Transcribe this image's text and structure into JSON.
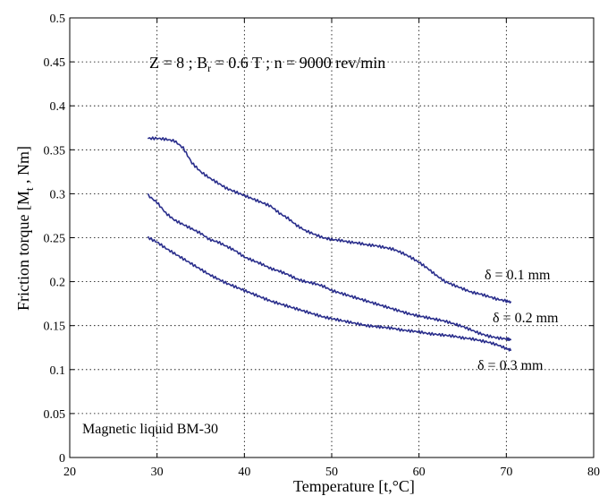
{
  "chart_data": {
    "type": "line",
    "xlabel": "Temperature [t,°C]",
    "ylabel": "Friction torque  [M",
    "ylabel_sub": "t",
    "ylabel_tail": " , Nm]",
    "xlim": [
      20,
      80
    ],
    "ylim": [
      0,
      0.5
    ],
    "x_ticks": [
      20,
      30,
      40,
      50,
      60,
      70,
      80
    ],
    "y_ticks": [
      0,
      0.05,
      0.1,
      0.15,
      0.2,
      0.25,
      0.3,
      0.35,
      0.4,
      0.45,
      0.5
    ],
    "x_tick_labels": [
      "20",
      "30",
      "40",
      "50",
      "60",
      "70",
      "80"
    ],
    "y_tick_labels": [
      "0",
      "0.05",
      "0.1",
      "0.15",
      "0.2",
      "0.25",
      "0.3",
      "0.35",
      "0.4",
      "0.45",
      "0.5"
    ],
    "grid": true,
    "annotation_main": {
      "part1": "Z = 8  ;  B",
      "sub": "r",
      "part2": " = 0.6 T  ;  n = 9000 rev/min"
    },
    "annotation_bottom": "Magnetic liquid BM-30",
    "line_color": "#2a2e8c",
    "series": [
      {
        "name": "δ = 0.1 mm",
        "x": [
          29,
          30,
          31,
          32,
          33,
          34,
          35,
          36,
          37,
          38,
          39,
          40,
          41,
          42,
          43,
          44,
          45,
          46,
          47,
          48,
          49,
          50,
          51,
          52,
          53,
          54,
          55,
          56,
          57,
          58,
          59,
          60,
          61,
          62,
          63,
          64,
          65,
          66,
          67,
          68,
          69,
          70,
          70.5
        ],
        "y": [
          0.363,
          0.363,
          0.362,
          0.36,
          0.352,
          0.335,
          0.325,
          0.318,
          0.312,
          0.306,
          0.302,
          0.298,
          0.294,
          0.29,
          0.286,
          0.278,
          0.272,
          0.264,
          0.258,
          0.254,
          0.25,
          0.248,
          0.247,
          0.245,
          0.244,
          0.242,
          0.241,
          0.239,
          0.237,
          0.233,
          0.228,
          0.222,
          0.215,
          0.207,
          0.2,
          0.196,
          0.192,
          0.188,
          0.186,
          0.183,
          0.18,
          0.178,
          0.177
        ]
      },
      {
        "name": "δ = 0.2 mm",
        "x": [
          29,
          30,
          31,
          32,
          33,
          34,
          35,
          36,
          37,
          38,
          39,
          40,
          41,
          42,
          43,
          44,
          45,
          46,
          47,
          48,
          49,
          50,
          51,
          52,
          53,
          54,
          55,
          56,
          57,
          58,
          59,
          60,
          61,
          62,
          63,
          64,
          65,
          66,
          67,
          68,
          69,
          70,
          70.5
        ],
        "y": [
          0.298,
          0.29,
          0.278,
          0.27,
          0.265,
          0.26,
          0.255,
          0.248,
          0.245,
          0.24,
          0.235,
          0.228,
          0.224,
          0.22,
          0.215,
          0.212,
          0.208,
          0.203,
          0.2,
          0.198,
          0.195,
          0.19,
          0.187,
          0.184,
          0.181,
          0.178,
          0.175,
          0.172,
          0.169,
          0.166,
          0.163,
          0.161,
          0.159,
          0.157,
          0.155,
          0.152,
          0.149,
          0.145,
          0.141,
          0.138,
          0.136,
          0.135,
          0.134
        ]
      },
      {
        "name": "δ = 0.3 mm",
        "x": [
          29,
          30,
          31,
          32,
          33,
          34,
          35,
          36,
          37,
          38,
          39,
          40,
          41,
          42,
          43,
          44,
          45,
          46,
          47,
          48,
          49,
          50,
          51,
          52,
          53,
          54,
          55,
          56,
          57,
          58,
          59,
          60,
          61,
          62,
          63,
          64,
          65,
          66,
          67,
          68,
          69,
          70,
          70.5
        ],
        "y": [
          0.25,
          0.245,
          0.238,
          0.232,
          0.226,
          0.22,
          0.214,
          0.208,
          0.203,
          0.198,
          0.194,
          0.19,
          0.186,
          0.182,
          0.178,
          0.175,
          0.172,
          0.169,
          0.166,
          0.163,
          0.16,
          0.158,
          0.156,
          0.154,
          0.152,
          0.15,
          0.149,
          0.148,
          0.147,
          0.145,
          0.144,
          0.143,
          0.141,
          0.14,
          0.139,
          0.138,
          0.136,
          0.135,
          0.133,
          0.131,
          0.128,
          0.124,
          0.122
        ]
      }
    ]
  }
}
